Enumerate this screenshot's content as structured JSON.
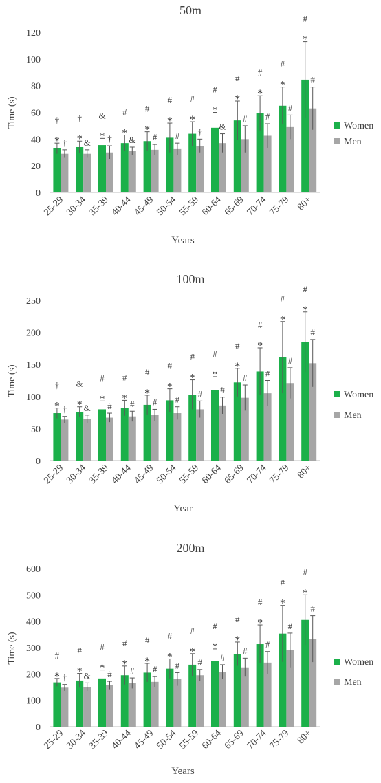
{
  "colors": {
    "women": "#1bb04a",
    "men": "#a6a6a6",
    "axis": "#bfbfbf",
    "text": "#404040",
    "error": "#595959"
  },
  "chart_data": [
    {
      "type": "bar",
      "title": "50m",
      "xlabel": "Years",
      "ylabel": "Time (s)",
      "ylim": [
        0,
        120
      ],
      "yticks": [
        0,
        20,
        40,
        60,
        80,
        100,
        120
      ],
      "grid": false,
      "legend": "right",
      "categories": [
        "25-29",
        "30-34",
        "35-39",
        "40-44",
        "45-49",
        "50-54",
        "55-59",
        "60-64",
        "65-69",
        "70-74",
        "75-79",
        "80+"
      ],
      "series": [
        {
          "name": "Women",
          "values": [
            33,
            34,
            35.5,
            37,
            38.5,
            41,
            44,
            48.5,
            54,
            59.5,
            65,
            84.5
          ],
          "errors": [
            4,
            4.5,
            5,
            6,
            7,
            11,
            9,
            11.5,
            14.5,
            13,
            14,
            28.5
          ],
          "annotations": [
            [
              "*",
              "†"
            ],
            [
              "*",
              "†"
            ],
            [
              "*",
              "&"
            ],
            [
              "*",
              "#"
            ],
            [
              "*",
              "#"
            ],
            [
              "*",
              "#"
            ],
            [
              "*",
              "#"
            ],
            [
              "*",
              "#"
            ],
            [
              "*",
              "#"
            ],
            [
              "*",
              "#"
            ],
            [
              "*",
              "#"
            ],
            [
              "*",
              "#"
            ]
          ]
        },
        {
          "name": "Men",
          "values": [
            29,
            29,
            30,
            31,
            32,
            32.5,
            35,
            37,
            40,
            42.5,
            49,
            63
          ],
          "errors": [
            3,
            3,
            5,
            3,
            4,
            4.5,
            5,
            7,
            10,
            9,
            9,
            16
          ],
          "annotations": [
            [
              "†"
            ],
            [
              "&"
            ],
            [
              "†"
            ],
            [
              "&"
            ],
            [
              "#"
            ],
            [
              "#"
            ],
            [
              "†"
            ],
            [
              "&"
            ],
            [
              "#"
            ],
            [
              "#"
            ],
            [
              "#"
            ],
            [
              "#"
            ]
          ]
        }
      ]
    },
    {
      "type": "bar",
      "title": "100m",
      "xlabel": "Year",
      "ylabel": "Time (s)",
      "ylim": [
        0,
        250
      ],
      "yticks": [
        0,
        50,
        100,
        150,
        200,
        250
      ],
      "grid": false,
      "legend": "right",
      "categories": [
        "25-29",
        "30-34",
        "35-39",
        "40-44",
        "45-49",
        "50-54",
        "55-59",
        "60-64",
        "65-69",
        "70-74",
        "75-79",
        "80+"
      ],
      "series": [
        {
          "name": "Women",
          "values": [
            74,
            76,
            80,
            82,
            87,
            94,
            103,
            110,
            122,
            139,
            161,
            185
          ],
          "errors": [
            8,
            8,
            13,
            12,
            15,
            18,
            23,
            21,
            22,
            37,
            56,
            47
          ],
          "annotations": [
            [
              "*",
              "†"
            ],
            [
              "*",
              "&"
            ],
            [
              "*",
              "#"
            ],
            [
              "*",
              "#"
            ],
            [
              "*",
              "#"
            ],
            [
              "*",
              "#"
            ],
            [
              "*",
              "#"
            ],
            [
              "*",
              "#"
            ],
            [
              "*",
              "#"
            ],
            [
              "*",
              "#"
            ],
            [
              "*",
              "#"
            ],
            [
              "*",
              "#"
            ]
          ]
        },
        {
          "name": "Men",
          "values": [
            64,
            65,
            67,
            69,
            71,
            74,
            80,
            86,
            98,
            105,
            121,
            152
          ],
          "errors": [
            5,
            6,
            7,
            8,
            9,
            10,
            13,
            13,
            20,
            20,
            24,
            37
          ],
          "annotations": [
            [
              "†"
            ],
            [
              "&"
            ],
            [
              "#"
            ],
            [
              "#"
            ],
            [
              "#"
            ],
            [
              "#"
            ],
            [
              "#"
            ],
            [
              "#"
            ],
            [
              "#"
            ],
            [
              "#"
            ],
            [
              "#"
            ],
            [
              "#"
            ]
          ]
        }
      ]
    },
    {
      "type": "bar",
      "title": "200m",
      "xlabel": "Years",
      "ylabel": "Time (s)",
      "ylim": [
        0,
        600
      ],
      "yticks": [
        0,
        100,
        200,
        300,
        400,
        500,
        600
      ],
      "grid": false,
      "legend": "right",
      "categories": [
        "25-29",
        "30-34",
        "35-39",
        "40-44",
        "45-49",
        "50-54",
        "55-59",
        "60-64",
        "65-69",
        "70-74",
        "75-79",
        "80+"
      ],
      "series": [
        {
          "name": "Women",
          "values": [
            168,
            175,
            183,
            195,
            205,
            220,
            235,
            250,
            276,
            313,
            353,
            405
          ],
          "errors": [
            15,
            27,
            32,
            35,
            35,
            37,
            42,
            45,
            45,
            73,
            107,
            95
          ],
          "annotations": [
            [
              "*",
              "#"
            ],
            [
              "*",
              "#"
            ],
            [
              "*",
              "#"
            ],
            [
              "*",
              "#"
            ],
            [
              "*",
              "#"
            ],
            [
              "*",
              "#"
            ],
            [
              "*",
              "#"
            ],
            [
              "*",
              "#"
            ],
            [
              "*",
              "#"
            ],
            [
              "*",
              "#"
            ],
            [
              "*",
              "#"
            ],
            [
              "*",
              "#"
            ]
          ]
        },
        {
          "name": "Men",
          "values": [
            148,
            151,
            157,
            165,
            170,
            180,
            195,
            208,
            225,
            243,
            290,
            333
          ],
          "errors": [
            12,
            15,
            15,
            20,
            20,
            25,
            22,
            27,
            35,
            42,
            65,
            88
          ],
          "annotations": [
            [
              "†"
            ],
            [
              "&"
            ],
            [
              "#"
            ],
            [
              "#"
            ],
            [
              "#"
            ],
            [
              "#"
            ],
            [
              "#"
            ],
            [
              "#"
            ],
            [
              "#"
            ],
            [
              "#"
            ],
            [
              "#"
            ],
            [
              "#"
            ]
          ]
        }
      ]
    }
  ]
}
